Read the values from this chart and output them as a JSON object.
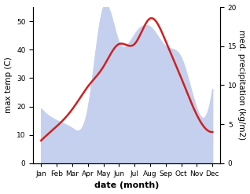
{
  "months": [
    "Jan",
    "Feb",
    "Mar",
    "Apr",
    "May",
    "Jun",
    "Jul",
    "Aug",
    "Sep",
    "Oct",
    "Nov",
    "Dec"
  ],
  "month_x": [
    1,
    2,
    3,
    4,
    5,
    6,
    7,
    8,
    9,
    10,
    11,
    12
  ],
  "max_temp": [
    8,
    13,
    19,
    27,
    34,
    42,
    42,
    51,
    43,
    30,
    17,
    11
  ],
  "precipitation": [
    7.0,
    5.5,
    4.5,
    7.0,
    20.0,
    15.5,
    16.5,
    17.5,
    15.0,
    13.5,
    7.0,
    9.5
  ],
  "temp_color": "#cc2222",
  "precip_fill_color": "#c5d0ee",
  "left_ylim": [
    0,
    55
  ],
  "right_ylim": [
    0,
    20
  ],
  "left_yticks": [
    0,
    10,
    20,
    30,
    40,
    50
  ],
  "right_yticks": [
    0,
    5,
    10,
    15,
    20
  ],
  "xlabel": "date (month)",
  "ylabel_left": "max temp (C)",
  "ylabel_right": "med. precipitation (kg/m2)",
  "bg_color": "#ffffff",
  "line_width": 1.8,
  "font_size_labels": 7.5,
  "font_size_ticks": 6.5,
  "font_size_xlabel": 8
}
